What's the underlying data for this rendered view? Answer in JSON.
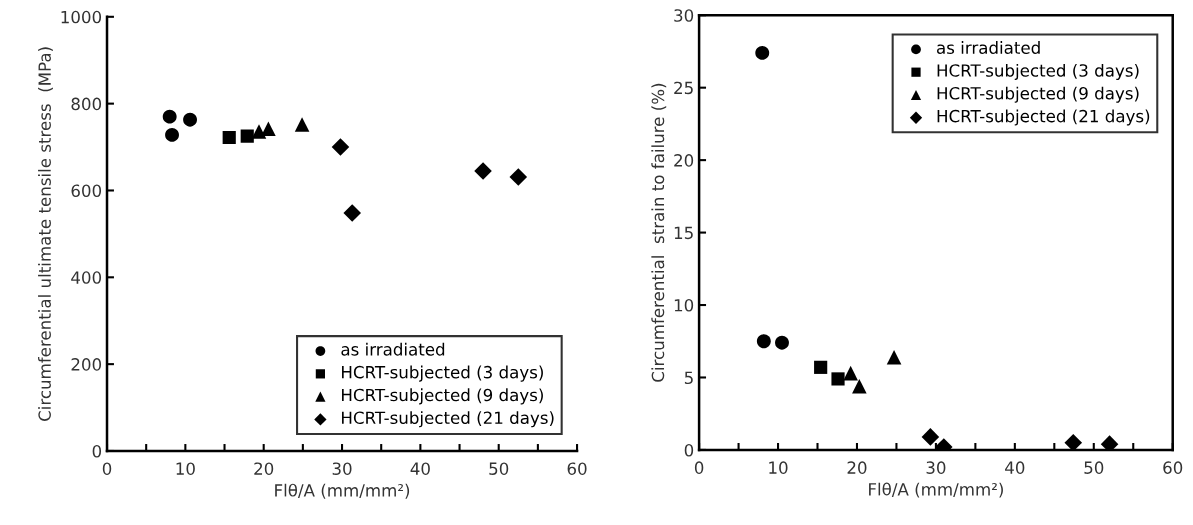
{
  "chart_data": [
    {
      "type": "scatter",
      "xlabel": "Flθ/A (mm/mm²)",
      "ylabel": "Circumferential ultimate tensile stress  (MPa)",
      "xlim": [
        0,
        60
      ],
      "ylim": [
        0,
        1000
      ],
      "xticks": [
        0,
        {
          "value": 5,
          "label": null
        },
        10,
        {
          "value": 15,
          "label": null
        },
        20,
        {
          "value": 25,
          "label": null
        },
        30,
        {
          "value": 35,
          "label": null
        },
        40,
        {
          "value": 45,
          "label": null
        },
        50,
        {
          "value": 55,
          "label": null
        },
        60
      ],
      "yticks": [
        0,
        200,
        400,
        600,
        800,
        1000
      ],
      "grid": false,
      "legend": "bottom right",
      "series": [
        {
          "name": "as irradiated",
          "color": "#000000",
          "marker": "circle",
          "x": [
            8.0,
            8.3,
            10.6
          ],
          "values": [
            770,
            728,
            763
          ]
        },
        {
          "name": "HCRT-subjected (3 days)",
          "color": "#000000",
          "marker": "square",
          "x": [
            15.6,
            17.9
          ],
          "values": [
            722,
            725
          ]
        },
        {
          "name": "HCRT-subjected (9 days)",
          "color": "#000000",
          "marker": "triangle",
          "x": [
            19.4,
            20.6,
            24.9
          ],
          "values": [
            736,
            742,
            752
          ]
        },
        {
          "name": "HCRT-subjected (21 days)",
          "color": "#000000",
          "marker": "diamond",
          "x": [
            29.8,
            31.3,
            48.0,
            52.5
          ],
          "values": [
            700,
            548,
            645,
            631
          ]
        }
      ]
    },
    {
      "type": "scatter",
      "xlabel": "Flθ/A (mm/mm²)",
      "ylabel": "Circumferential  strain to failure (%)",
      "xlim": [
        0,
        60
      ],
      "ylim": [
        0,
        30
      ],
      "xticks": [
        0,
        {
          "value": 5,
          "label": null
        },
        10,
        {
          "value": 15,
          "label": null
        },
        20,
        {
          "value": 25,
          "label": null
        },
        30,
        {
          "value": 35,
          "label": null
        },
        40,
        {
          "value": 45,
          "label": null
        },
        50,
        {
          "value": 55,
          "label": null
        },
        60
      ],
      "yticks": [
        0,
        5,
        10,
        15,
        20,
        25,
        30
      ],
      "grid": false,
      "legend": "top right",
      "series": [
        {
          "name": "as irradiated",
          "color": "#000000",
          "marker": "circle",
          "x": [
            8.0,
            8.2,
            10.5
          ],
          "values": [
            27.4,
            7.5,
            7.4
          ]
        },
        {
          "name": "HCRT-subjected (3 days)",
          "color": "#000000",
          "marker": "square",
          "x": [
            15.4,
            17.6
          ],
          "values": [
            5.7,
            4.9
          ]
        },
        {
          "name": "HCRT-subjected (9 days)",
          "color": "#000000",
          "marker": "triangle",
          "x": [
            19.2,
            20.3,
            24.7
          ],
          "values": [
            5.3,
            4.4,
            6.4
          ]
        },
        {
          "name": "HCRT-subjected (21 days)",
          "color": "#000000",
          "marker": "diamond",
          "x": [
            29.3,
            31.0,
            47.4,
            52.0
          ],
          "values": [
            0.9,
            0.2,
            0.5,
            0.4
          ]
        }
      ]
    }
  ]
}
